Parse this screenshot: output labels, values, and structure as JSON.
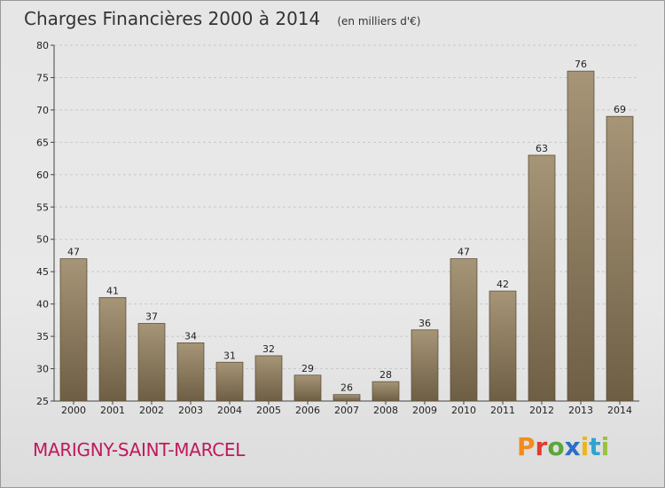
{
  "header": {
    "title": "Charges Financières 2000 à 2014",
    "subtitle": "(en milliers d'€)"
  },
  "footer": {
    "town": "MARIGNY-SAINT-MARCEL",
    "brand": {
      "letters": [
        "P",
        "r",
        "o",
        "x",
        "i",
        "t",
        "i"
      ],
      "colors": [
        "#f08c1e",
        "#e23a2d",
        "#5aa63a",
        "#2b6fc7",
        "#e6b81c",
        "#2fa4cf",
        "#9cc23b"
      ]
    }
  },
  "colors": {
    "bar_top": "#a69577",
    "bar_bottom": "#6e5e44",
    "bar_outline": "#5e5039",
    "grid": "#c8c8c8"
  },
  "chart_data": {
    "type": "bar",
    "categories": [
      "2000",
      "2001",
      "2002",
      "2003",
      "2004",
      "2005",
      "2006",
      "2007",
      "2008",
      "2009",
      "2010",
      "2011",
      "2012",
      "2013",
      "2014"
    ],
    "values": [
      47,
      41,
      37,
      34,
      31,
      32,
      29,
      26,
      28,
      36,
      47,
      42,
      63,
      76,
      69
    ],
    "ylim": [
      25,
      80
    ],
    "yticks": [
      25,
      30,
      35,
      40,
      45,
      50,
      55,
      60,
      65,
      70,
      75,
      80
    ],
    "grid": true,
    "data_labels": true
  }
}
